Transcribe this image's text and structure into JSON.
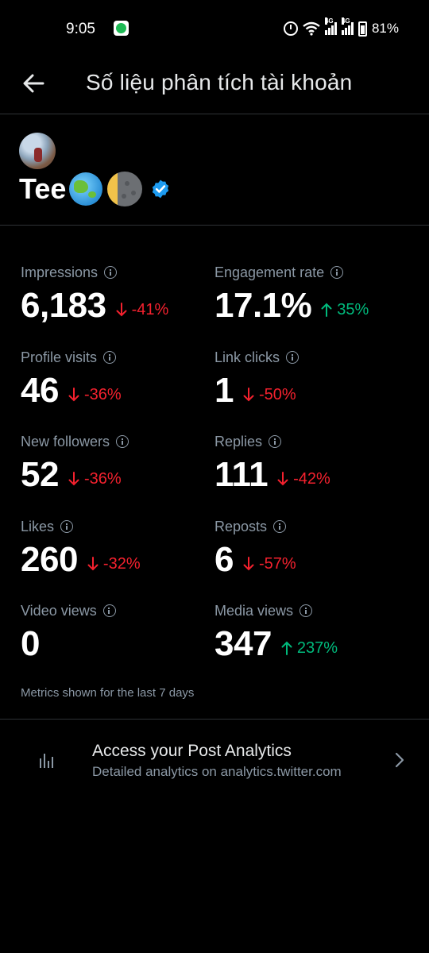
{
  "status_bar": {
    "time": "9:05",
    "network_1": "4G",
    "network_2": "4G",
    "battery": "81%",
    "icons": [
      "spotify-icon",
      "alarm-icon",
      "wifi-icon",
      "signal-icon",
      "signal-icon",
      "battery-icon"
    ]
  },
  "header": {
    "title": "Số liệu phân tích tài khoản",
    "back_icon": "back-arrow-icon"
  },
  "profile": {
    "name": "Tee",
    "emojis": [
      "globe-icon",
      "moon-icon"
    ],
    "verified": true
  },
  "metrics": [
    {
      "label": "Impressions",
      "value": "6,183",
      "change": "-41%",
      "direction": "down"
    },
    {
      "label": "Engagement rate",
      "value": "17.1%",
      "change": "35%",
      "direction": "up"
    },
    {
      "label": "Profile visits",
      "value": "46",
      "change": "-36%",
      "direction": "down"
    },
    {
      "label": "Link clicks",
      "value": "1",
      "change": "-50%",
      "direction": "down"
    },
    {
      "label": "New followers",
      "value": "52",
      "change": "-36%",
      "direction": "down"
    },
    {
      "label": "Replies",
      "value": "111",
      "change": "-42%",
      "direction": "down"
    },
    {
      "label": "Likes",
      "value": "260",
      "change": "-32%",
      "direction": "down"
    },
    {
      "label": "Reposts",
      "value": "6",
      "change": "-57%",
      "direction": "down"
    },
    {
      "label": "Video views",
      "value": "0",
      "change": "",
      "direction": "none"
    },
    {
      "label": "Media views",
      "value": "347",
      "change": "237%",
      "direction": "up"
    }
  ],
  "metrics_note": "Metrics shown for the last 7 days",
  "post_analytics": {
    "title": "Access your Post Analytics",
    "subtitle": "Detailed analytics on analytics.twitter.com"
  },
  "colors": {
    "background": "#000000",
    "text_primary": "#e7e9ea",
    "text_secondary": "#8b98a5",
    "negative": "#f4212e",
    "positive": "#00ba7c",
    "verified": "#1d9bf0",
    "divider": "#2f3336"
  }
}
